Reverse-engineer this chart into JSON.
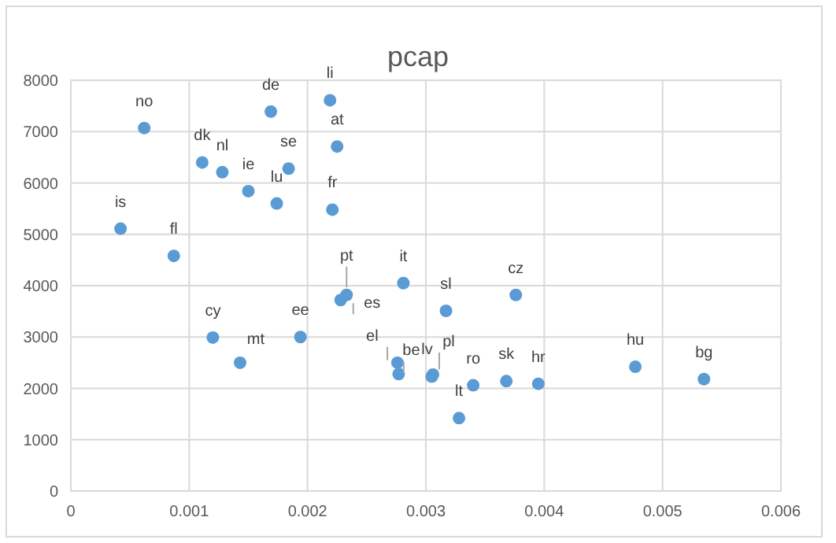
{
  "chart_data": {
    "type": "scatter",
    "title": "pcap",
    "x": [
      0.00062,
      0.00042,
      0.00087,
      0.00111,
      0.00128,
      0.0015,
      0.00169,
      0.00174,
      0.00184,
      0.00219,
      0.00225,
      0.00221,
      0.00233,
      0.00228,
      0.00281,
      0.0012,
      0.00143,
      0.00194,
      0.00276,
      0.00277,
      0.00317,
      0.00376,
      0.00305,
      0.00306,
      0.0034,
      0.00328,
      0.00368,
      0.00395,
      0.00477,
      0.00535
    ],
    "series": [
      {
        "color": "#5b9bd5",
        "values": [
          7070,
          5110,
          4580,
          6400,
          6210,
          5840,
          7390,
          5600,
          6280,
          7610,
          6710,
          5480,
          3820,
          3720,
          4050,
          2990,
          2500,
          3000,
          2500,
          2280,
          3510,
          3820,
          2230,
          2270,
          2060,
          1420,
          2140,
          2090,
          2420,
          2180
        ],
        "value_labels": [
          "no",
          "is",
          "fl",
          "dk",
          "nl",
          "ie",
          "de",
          "lu",
          "se",
          "li",
          "at",
          "fr",
          "pt",
          "es",
          "it",
          "cy",
          "mt",
          "ee",
          "el",
          "be",
          "sl",
          "cz",
          "lv",
          "pl",
          "ro",
          "lt",
          "sk",
          "hr",
          "hu",
          "bg"
        ]
      }
    ],
    "xlim": [
      0,
      0.006
    ],
    "xticks": [
      0,
      0.001,
      0.002,
      0.003,
      0.004,
      0.005,
      0.006
    ],
    "ylim": [
      0,
      8000
    ],
    "yticks": [
      0,
      1000,
      2000,
      3000,
      4000,
      5000,
      6000,
      7000,
      8000
    ],
    "grid": true,
    "marker": "circle"
  }
}
